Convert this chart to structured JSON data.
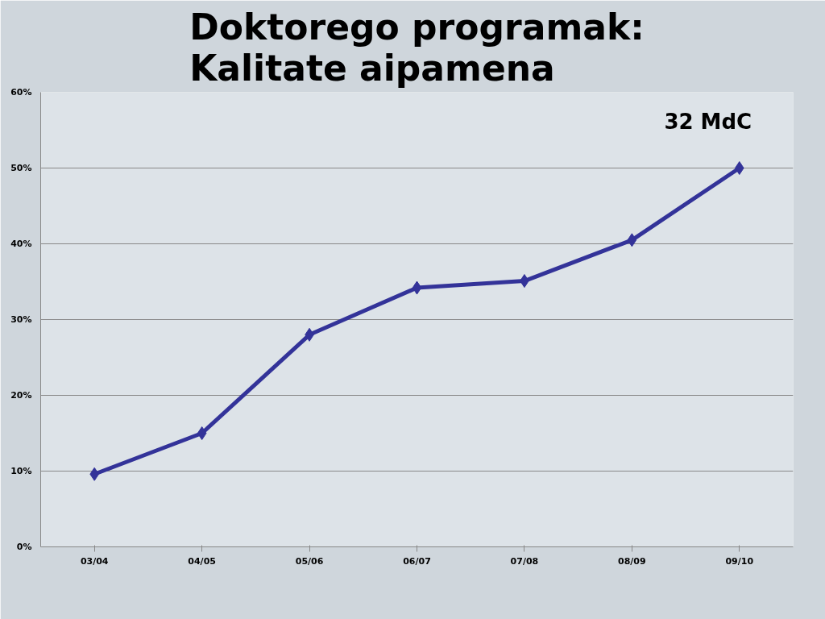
{
  "chart_data": {
    "type": "line",
    "title": "Doktorego programak:\nKalitate aipamena",
    "annotations": [
      "32 MdC"
    ],
    "categories": [
      "03/04",
      "04/05",
      "05/06",
      "06/07",
      "07/08",
      "08/09",
      "09/10"
    ],
    "series": [
      {
        "color": "#333399",
        "values": [
          9.6,
          15,
          28,
          34.2,
          35.1,
          40.5,
          50
        ]
      }
    ],
    "ylim": [
      0,
      60
    ],
    "yticks": [
      {
        "value": 0,
        "label": "0%"
      },
      {
        "value": 10,
        "label": "10%"
      },
      {
        "value": 20,
        "label": "20%"
      },
      {
        "value": 30,
        "label": "30%"
      },
      {
        "value": 40,
        "label": "40%"
      },
      {
        "value": 50,
        "label": "50%"
      },
      {
        "value": 60,
        "label": "60%"
      }
    ],
    "grid": "y",
    "marker": "diamond",
    "line_style": "solid"
  }
}
